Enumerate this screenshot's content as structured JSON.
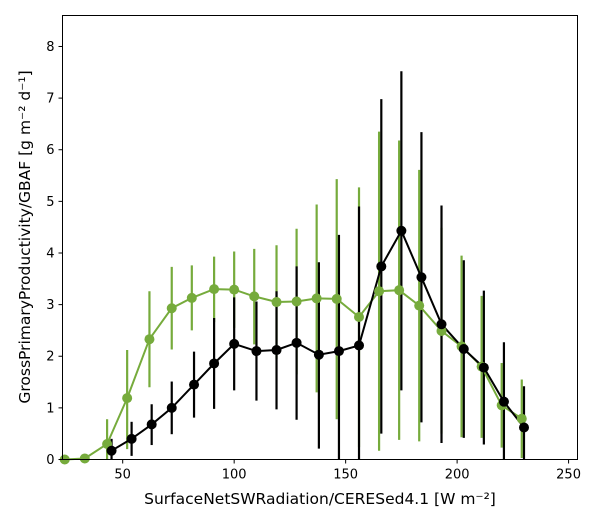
{
  "chart_data": {
    "type": "line",
    "xlabel": "SurfaceNetSWRadiation/CERESed4.1 [W m⁻²]",
    "ylabel": "GrossPrimaryProductivity/GBAF [g m⁻² d⁻¹]",
    "xlim": [
      23,
      254
    ],
    "ylim": [
      0,
      8.6
    ],
    "xticks": [
      50,
      100,
      150,
      200,
      250
    ],
    "yticks": [
      0,
      1,
      2,
      3,
      4,
      5,
      6,
      7,
      8
    ],
    "grid": false,
    "legend": "none",
    "series": [
      {
        "color": "#76ab3c",
        "points": [
          {
            "x": 24,
            "y": 0.0,
            "lo": 0.0,
            "hi": 0.0
          },
          {
            "x": 33,
            "y": 0.02,
            "lo": 0.0,
            "hi": 0.06
          },
          {
            "x": 43,
            "y": 0.3,
            "lo": 0.0,
            "hi": 0.78
          },
          {
            "x": 52,
            "y": 1.19,
            "lo": 0.2,
            "hi": 2.12
          },
          {
            "x": 62,
            "y": 2.33,
            "lo": 1.4,
            "hi": 3.26
          },
          {
            "x": 72,
            "y": 2.93,
            "lo": 2.13,
            "hi": 3.73
          },
          {
            "x": 81,
            "y": 3.13,
            "lo": 2.5,
            "hi": 3.76
          },
          {
            "x": 91,
            "y": 3.3,
            "lo": 2.66,
            "hi": 3.93
          },
          {
            "x": 100,
            "y": 3.29,
            "lo": 2.55,
            "hi": 4.03
          },
          {
            "x": 109,
            "y": 3.16,
            "lo": 2.23,
            "hi": 4.08
          },
          {
            "x": 119,
            "y": 3.05,
            "lo": 1.95,
            "hi": 4.15
          },
          {
            "x": 128,
            "y": 3.06,
            "lo": 1.65,
            "hi": 4.47
          },
          {
            "x": 137,
            "y": 3.12,
            "lo": 1.3,
            "hi": 4.94
          },
          {
            "x": 146,
            "y": 3.11,
            "lo": 0.78,
            "hi": 5.43
          },
          {
            "x": 156,
            "y": 2.76,
            "lo": 0.24,
            "hi": 5.27
          },
          {
            "x": 165,
            "y": 3.26,
            "lo": 0.17,
            "hi": 6.35
          },
          {
            "x": 174,
            "y": 3.28,
            "lo": 0.38,
            "hi": 6.18
          },
          {
            "x": 183,
            "y": 2.98,
            "lo": 0.35,
            "hi": 5.61
          },
          {
            "x": 193,
            "y": 2.49,
            "lo": 0.5,
            "hi": 4.49
          },
          {
            "x": 202,
            "y": 2.19,
            "lo": 0.43,
            "hi": 3.95
          },
          {
            "x": 211,
            "y": 1.8,
            "lo": 0.42,
            "hi": 3.17
          },
          {
            "x": 220,
            "y": 1.05,
            "lo": 0.23,
            "hi": 1.87
          },
          {
            "x": 229,
            "y": 0.79,
            "lo": 0.03,
            "hi": 1.55
          }
        ]
      },
      {
        "color": "#000000",
        "points": [
          {
            "x": 45,
            "y": 0.17,
            "lo": 0.0,
            "hi": 0.4
          },
          {
            "x": 54,
            "y": 0.4,
            "lo": 0.07,
            "hi": 0.73
          },
          {
            "x": 63,
            "y": 0.68,
            "lo": 0.28,
            "hi": 1.07
          },
          {
            "x": 72,
            "y": 1.0,
            "lo": 0.49,
            "hi": 1.51
          },
          {
            "x": 82,
            "y": 1.45,
            "lo": 0.81,
            "hi": 2.09
          },
          {
            "x": 91,
            "y": 1.86,
            "lo": 0.98,
            "hi": 2.74
          },
          {
            "x": 100,
            "y": 2.24,
            "lo": 1.34,
            "hi": 3.14
          },
          {
            "x": 110,
            "y": 2.1,
            "lo": 1.14,
            "hi": 3.06
          },
          {
            "x": 119,
            "y": 2.12,
            "lo": 0.97,
            "hi": 3.26
          },
          {
            "x": 128,
            "y": 2.26,
            "lo": 0.77,
            "hi": 3.74
          },
          {
            "x": 138,
            "y": 2.03,
            "lo": 0.21,
            "hi": 3.82
          },
          {
            "x": 147,
            "y": 2.1,
            "lo": 0.0,
            "hi": 4.35
          },
          {
            "x": 156,
            "y": 2.21,
            "lo": 0.0,
            "hi": 4.9
          },
          {
            "x": 166,
            "y": 3.74,
            "lo": 0.5,
            "hi": 6.98
          },
          {
            "x": 175,
            "y": 4.43,
            "lo": 1.34,
            "hi": 7.52
          },
          {
            "x": 184,
            "y": 3.53,
            "lo": 0.72,
            "hi": 6.34
          },
          {
            "x": 193,
            "y": 2.62,
            "lo": 0.32,
            "hi": 4.92
          },
          {
            "x": 203,
            "y": 2.14,
            "lo": 0.42,
            "hi": 3.86
          },
          {
            "x": 212,
            "y": 1.78,
            "lo": 0.29,
            "hi": 3.27
          },
          {
            "x": 221,
            "y": 1.12,
            "lo": 0.0,
            "hi": 2.27
          },
          {
            "x": 230,
            "y": 0.62,
            "lo": 0.0,
            "hi": 1.42
          }
        ]
      }
    ]
  }
}
